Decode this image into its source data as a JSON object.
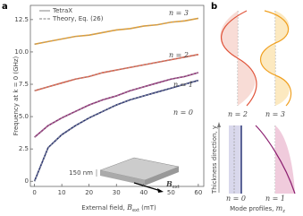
{
  "chart_data": {
    "type": "line",
    "panel_label": "a",
    "x": [
      0,
      5,
      10,
      15,
      20,
      25,
      30,
      35,
      40,
      45,
      50,
      55,
      60
    ],
    "xlim": [
      -1.5,
      62
    ],
    "xticks": [
      0,
      10,
      20,
      30,
      40,
      50,
      60
    ],
    "ylim": [
      -0.4,
      13.6
    ],
    "yticks": [
      0,
      2.5,
      {
        "value": 5,
        "label": "5.0"
      },
      7.5,
      {
        "value": 10,
        "label": "10.0"
      },
      12.5
    ],
    "x_label": {
      "text": "External field, ",
      "symbol": "B",
      "subscript": "ext",
      "unit": " (mT)"
    },
    "y_label": "Frequency at k = 0 (GHz)",
    "legend": {
      "position": "upper left",
      "entries": [
        {
          "name": "TetraX",
          "style": "solid"
        },
        {
          "name": "Theory, Eq. (26)",
          "style": "dashed"
        }
      ],
      "color": "#999999"
    },
    "series": [
      {
        "name": "n = 0",
        "color": "#1f2a6e",
        "values": [
          0,
          2.6,
          3.6,
          4.3,
          4.9,
          5.4,
          5.9,
          6.3,
          6.6,
          6.9,
          7.2,
          7.5,
          7.8
        ]
      },
      {
        "name": "n = 1",
        "color": "#8c1f70",
        "values": [
          3.4,
          4.3,
          4.9,
          5.4,
          5.9,
          6.3,
          6.6,
          7.0,
          7.3,
          7.6,
          7.9,
          8.1,
          8.4
        ]
      },
      {
        "name": "n = 2",
        "color": "#e0543a",
        "values": [
          7.0,
          7.3,
          7.6,
          7.9,
          8.1,
          8.4,
          8.6,
          8.8,
          9.0,
          9.2,
          9.4,
          9.6,
          9.8
        ]
      },
      {
        "name": "n = 3",
        "color": "#f0a020",
        "values": [
          10.6,
          10.8,
          11.0,
          11.2,
          11.3,
          11.5,
          11.7,
          11.8,
          12.0,
          12.1,
          12.3,
          12.4,
          12.6
        ]
      }
    ],
    "inset": {
      "thickness": "150 nm",
      "field_symbol": "B",
      "field_subscript": "ext"
    }
  },
  "mode_profiles": {
    "panel_label": "b",
    "profiles": [
      "n = 2",
      "n = 3",
      "n = 0",
      "n = 1"
    ],
    "y_label": "Thickness direction, y",
    "x_label": "Mode profiles, ",
    "x_symbol": "m",
    "x_subscript": "z"
  }
}
